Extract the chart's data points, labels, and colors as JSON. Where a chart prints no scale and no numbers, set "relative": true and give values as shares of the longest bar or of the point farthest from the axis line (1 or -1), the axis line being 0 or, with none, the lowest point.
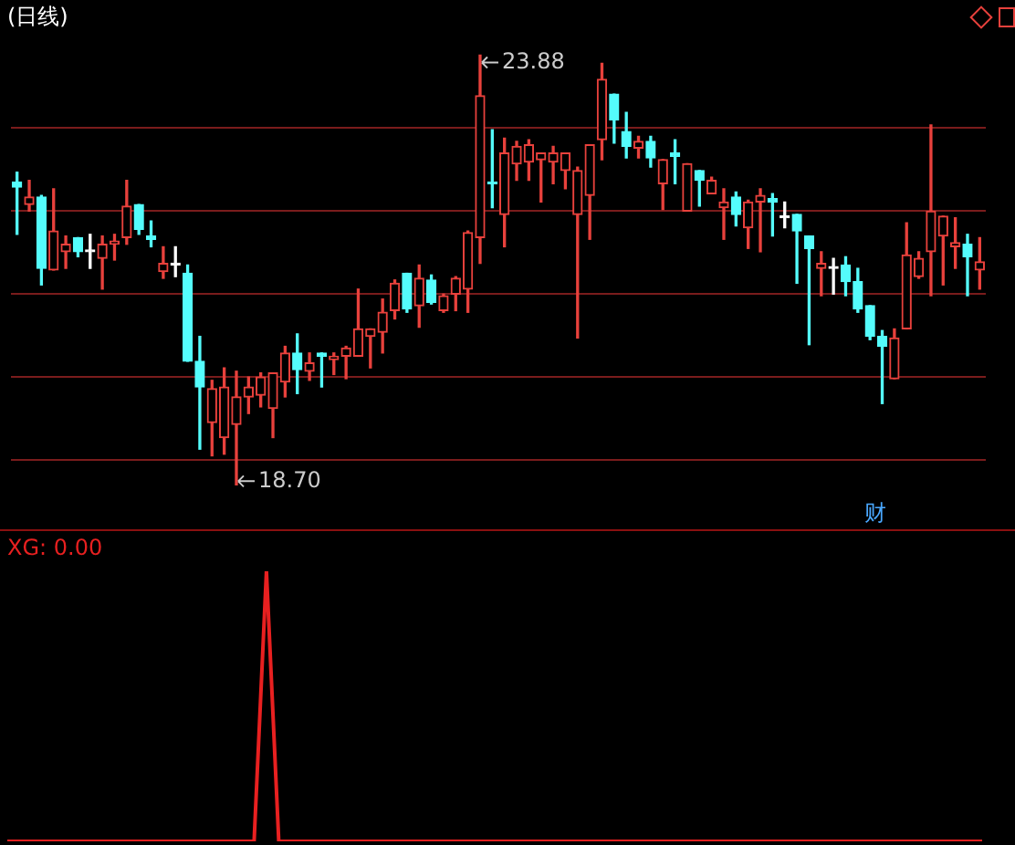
{
  "chart_data": [
    {
      "type": "candlestick",
      "title": "(日线)",
      "categories": [
        null,
        null,
        null,
        null,
        null,
        null,
        null,
        null,
        null,
        null,
        null,
        null,
        null,
        null,
        null,
        null,
        null,
        null,
        null,
        null,
        null,
        null,
        null,
        null,
        null,
        null,
        null,
        null,
        null,
        null,
        null,
        null,
        null,
        null,
        null,
        null,
        null,
        null,
        null,
        null,
        null,
        null,
        null,
        null,
        null,
        null,
        null,
        null,
        null,
        null,
        null,
        null,
        null,
        null,
        null,
        null,
        null,
        null,
        null,
        null,
        null,
        null,
        null,
        null,
        null,
        null,
        null,
        null,
        null,
        null,
        null,
        null,
        null,
        null,
        null,
        null,
        null,
        null,
        null,
        null
      ],
      "ohlc": [
        [
          22.35,
          22.47,
          21.72,
          22.29
        ],
        [
          22.08,
          22.37,
          22.0,
          22.17
        ],
        [
          22.17,
          22.19,
          21.11,
          21.31
        ],
        [
          21.29,
          22.27,
          21.29,
          21.76
        ],
        [
          21.51,
          21.7,
          21.31,
          21.6
        ],
        [
          21.68,
          21.68,
          21.45,
          21.51
        ],
        [
          21.51,
          21.72,
          21.31,
          21.51
        ],
        [
          21.43,
          21.7,
          21.06,
          21.6
        ],
        [
          21.6,
          21.72,
          21.41,
          21.64
        ],
        [
          21.68,
          22.37,
          21.6,
          22.06
        ],
        [
          22.08,
          22.08,
          21.72,
          21.78
        ],
        [
          21.7,
          21.88,
          21.57,
          21.66
        ],
        [
          21.27,
          21.57,
          21.19,
          21.37
        ],
        [
          21.35,
          21.57,
          21.21,
          21.35
        ],
        [
          21.25,
          21.35,
          20.19,
          20.19
        ],
        [
          20.19,
          20.49,
          19.13,
          19.88
        ],
        [
          19.45,
          19.96,
          19.05,
          19.86
        ],
        [
          19.27,
          20.11,
          19.07,
          19.88
        ],
        [
          19.43,
          20.07,
          18.7,
          19.76
        ],
        [
          19.76,
          20.0,
          19.56,
          19.88
        ],
        [
          19.78,
          20.05,
          19.64,
          20.0
        ],
        [
          19.62,
          20.05,
          19.27,
          20.05
        ],
        [
          19.94,
          20.37,
          19.76,
          20.29
        ],
        [
          20.29,
          20.52,
          19.8,
          20.09
        ],
        [
          20.07,
          20.29,
          19.96,
          20.17
        ],
        [
          20.29,
          20.29,
          19.88,
          20.25
        ],
        [
          20.21,
          20.29,
          20.03,
          20.25
        ],
        [
          20.25,
          20.37,
          19.98,
          20.35
        ],
        [
          20.25,
          21.06,
          20.25,
          20.58
        ],
        [
          20.49,
          20.58,
          20.11,
          20.58
        ],
        [
          20.54,
          20.94,
          20.29,
          20.78
        ],
        [
          20.8,
          21.17,
          20.7,
          21.13
        ],
        [
          21.25,
          21.25,
          20.78,
          20.82
        ],
        [
          20.86,
          21.35,
          20.6,
          21.19
        ],
        [
          21.17,
          21.23,
          20.88,
          20.9
        ],
        [
          20.8,
          21.0,
          20.78,
          20.98
        ],
        [
          21.0,
          21.21,
          20.8,
          21.19
        ],
        [
          21.06,
          21.76,
          20.78,
          21.74
        ],
        [
          21.68,
          23.88,
          21.37,
          23.39
        ],
        [
          22.35,
          22.98,
          22.04,
          22.33
        ],
        [
          21.96,
          22.88,
          21.57,
          22.7
        ],
        [
          22.57,
          22.84,
          22.37,
          22.78
        ],
        [
          22.59,
          22.86,
          22.37,
          22.8
        ],
        [
          22.62,
          22.7,
          22.11,
          22.7
        ],
        [
          22.59,
          22.78,
          22.33,
          22.7
        ],
        [
          22.49,
          22.7,
          22.27,
          22.7
        ],
        [
          21.96,
          22.53,
          20.47,
          22.49
        ],
        [
          22.19,
          22.8,
          21.66,
          22.8
        ],
        [
          22.86,
          23.78,
          22.62,
          23.59
        ],
        [
          23.41,
          23.41,
          22.82,
          23.1
        ],
        [
          22.96,
          23.19,
          22.64,
          22.78
        ],
        [
          22.76,
          22.9,
          22.64,
          22.84
        ],
        [
          22.84,
          22.9,
          22.53,
          22.64
        ],
        [
          22.33,
          22.62,
          22.02,
          22.62
        ],
        [
          22.7,
          22.86,
          22.33,
          22.66
        ],
        [
          22.0,
          22.57,
          22.0,
          22.57
        ],
        [
          22.49,
          22.49,
          22.06,
          22.37
        ],
        [
          22.21,
          22.41,
          22.21,
          22.37
        ],
        [
          22.04,
          22.27,
          21.66,
          22.11
        ],
        [
          22.17,
          22.23,
          21.82,
          21.96
        ],
        [
          21.8,
          22.13,
          21.55,
          22.11
        ],
        [
          22.11,
          22.27,
          21.51,
          22.19
        ],
        [
          22.15,
          22.21,
          21.7,
          22.11
        ],
        [
          21.92,
          22.11,
          21.8,
          21.92
        ],
        [
          21.96,
          21.96,
          21.13,
          21.76
        ],
        [
          21.7,
          21.7,
          20.39,
          21.55
        ],
        [
          21.31,
          21.51,
          20.98,
          21.37
        ],
        [
          21.31,
          21.43,
          21.0,
          21.31
        ],
        [
          21.35,
          21.45,
          20.98,
          21.15
        ],
        [
          21.15,
          21.31,
          20.78,
          20.82
        ],
        [
          20.86,
          20.86,
          20.45,
          20.49
        ],
        [
          20.49,
          20.56,
          19.68,
          20.37
        ],
        [
          19.98,
          20.58,
          19.98,
          20.47
        ],
        [
          20.58,
          21.86,
          20.58,
          21.47
        ],
        [
          21.21,
          21.51,
          21.19,
          21.43
        ],
        [
          21.51,
          23.04,
          20.98,
          22.0
        ],
        [
          21.7,
          21.94,
          21.11,
          21.94
        ],
        [
          21.57,
          21.92,
          21.31,
          21.62
        ],
        [
          21.6,
          21.72,
          20.98,
          21.45
        ],
        [
          21.29,
          21.68,
          21.06,
          21.39
        ]
      ],
      "colors": [
        "#54fcfc",
        "#e8413c",
        "#54fcfc",
        "#e8413c",
        "#e8413c",
        "#54fcfc",
        "#ffffff",
        "#e8413c",
        "#e8413c",
        "#e8413c",
        "#54fcfc",
        "#54fcfc",
        "#e8413c",
        "#ffffff",
        "#54fcfc",
        "#54fcfc",
        "#e8413c",
        "#e8413c",
        "#e8413c",
        "#e8413c",
        "#e8413c",
        "#e8413c",
        "#e8413c",
        "#54fcfc",
        "#e8413c",
        "#54fcfc",
        "#e8413c",
        "#e8413c",
        "#e8413c",
        "#e8413c",
        "#e8413c",
        "#e8413c",
        "#54fcfc",
        "#e8413c",
        "#54fcfc",
        "#e8413c",
        "#e8413c",
        "#e8413c",
        "#e8413c",
        "#54fcfc",
        "#e8413c",
        "#e8413c",
        "#e8413c",
        "#e8413c",
        "#e8413c",
        "#e8413c",
        "#e8413c",
        "#e8413c",
        "#e8413c",
        "#54fcfc",
        "#54fcfc",
        "#e8413c",
        "#54fcfc",
        "#e8413c",
        "#54fcfc",
        "#e8413c",
        "#54fcfc",
        "#e8413c",
        "#e8413c",
        "#54fcfc",
        "#e8413c",
        "#e8413c",
        "#54fcfc",
        "#ffffff",
        "#54fcfc",
        "#54fcfc",
        "#e8413c",
        "#ffffff",
        "#54fcfc",
        "#54fcfc",
        "#54fcfc",
        "#54fcfc",
        "#e8413c",
        "#e8413c",
        "#e8413c",
        "#e8413c",
        "#e8413c",
        "#e8413c",
        "#54fcfc",
        "#e8413c"
      ],
      "yticks": [
        {
          "value": 19,
          "label": null
        },
        {
          "value": 20,
          "label": null
        },
        {
          "value": 21,
          "label": null
        },
        {
          "value": 22,
          "label": null
        },
        {
          "value": 23,
          "label": null
        }
      ],
      "grid": "y",
      "annotations": [
        "23.88",
        "18.70",
        "财"
      ]
    },
    {
      "type": "line",
      "relative": true,
      "color": "#e82020",
      "categories": [
        null,
        null,
        null,
        null,
        null,
        null,
        null,
        null,
        null,
        null,
        null,
        null,
        null,
        null,
        null,
        null,
        null,
        null,
        null,
        null,
        null,
        null,
        null,
        null,
        null,
        null,
        null,
        null,
        null,
        null,
        null,
        null,
        null,
        null,
        null,
        null,
        null,
        null,
        null,
        null,
        null,
        null,
        null,
        null,
        null,
        null,
        null,
        null,
        null,
        null,
        null,
        null,
        null,
        null,
        null,
        null,
        null,
        null,
        null,
        null,
        null,
        null,
        null,
        null,
        null,
        null,
        null,
        null,
        null,
        null,
        null,
        null,
        null,
        null,
        null,
        null,
        null,
        null,
        null,
        null
      ],
      "values": [
        0,
        0,
        0,
        0,
        0,
        0,
        0,
        0,
        0,
        0,
        0,
        0,
        0,
        0,
        0,
        0,
        0,
        0,
        0,
        0,
        0,
        1,
        0,
        0,
        0,
        0,
        0,
        0,
        0,
        0,
        0,
        0,
        0,
        0,
        0,
        0,
        0,
        0,
        0,
        0,
        0,
        0,
        0,
        0,
        0,
        0,
        0,
        0,
        0,
        0,
        0,
        0,
        0,
        0,
        0,
        0,
        0,
        0,
        0,
        0,
        0,
        0,
        0,
        0,
        0,
        0,
        0,
        0,
        0,
        0,
        0,
        0,
        0,
        0,
        0,
        0,
        0,
        0,
        0,
        0
      ],
      "annotations": [
        "XG: 0.00"
      ]
    }
  ]
}
